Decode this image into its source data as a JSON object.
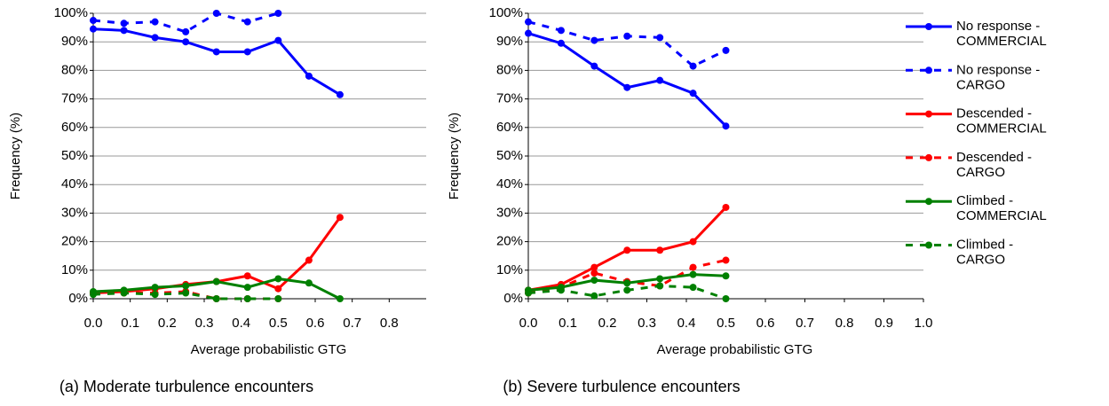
{
  "chart_data": [
    {
      "type": "line",
      "ylabel": "Frequency (%)",
      "xlabel": "Average probabilistic GTG",
      "caption": "(a) Moderate turbulence encounters",
      "x": [
        0,
        0.083,
        0.167,
        0.25,
        0.333,
        0.417,
        0.5,
        0.583,
        0.667
      ],
      "xlim": [
        0,
        0.9
      ],
      "xticks": [
        {
          "value": 0,
          "label": "0.0"
        },
        0.1,
        0.2,
        0.3,
        0.4,
        0.5,
        0.6,
        0.7,
        0.8
      ],
      "ylim": [
        0,
        100
      ],
      "yticks": [
        {
          "value": 0,
          "label": "0%"
        },
        {
          "value": 10,
          "label": "10%"
        },
        {
          "value": 20,
          "label": "20%"
        },
        {
          "value": 30,
          "label": "30%"
        },
        {
          "value": 40,
          "label": "40%"
        },
        {
          "value": 50,
          "label": "50%"
        },
        {
          "value": 60,
          "label": "60%"
        },
        {
          "value": 70,
          "label": "70%"
        },
        {
          "value": 80,
          "label": "80%"
        },
        {
          "value": 90,
          "label": "90%"
        },
        {
          "value": 100,
          "label": "100%"
        }
      ],
      "grid": true,
      "series": [
        {
          "name": "No response - COMMERCIAL",
          "color": "#0000ff",
          "dash": false,
          "values": [
            94.5,
            94,
            91.5,
            90,
            86.5,
            86.5,
            90.5,
            78,
            71.5
          ]
        },
        {
          "name": "No response - CARGO",
          "color": "#0000ff",
          "dash": true,
          "values": [
            97.5,
            96.5,
            97,
            93.5,
            100,
            97,
            100,
            null,
            null
          ]
        },
        {
          "name": "Descended - COMMERCIAL",
          "color": "#ff0000",
          "dash": false,
          "values": [
            2,
            2.5,
            3.5,
            5,
            6,
            8,
            3.5,
            13.5,
            28.5
          ]
        },
        {
          "name": "Descended - CARGO",
          "color": "#ff0000",
          "dash": true,
          "values": [
            2,
            2,
            2,
            2.5,
            0,
            0,
            0,
            null,
            null
          ]
        },
        {
          "name": "Climbed - COMMERCIAL",
          "color": "#008000",
          "dash": false,
          "values": [
            2.5,
            3,
            4,
            4.5,
            6,
            4,
            7,
            5.5,
            0
          ]
        },
        {
          "name": "Climbed - CARGO",
          "color": "#008000",
          "dash": true,
          "values": [
            1.5,
            2,
            1.5,
            2,
            0,
            0,
            0,
            null,
            null
          ]
        }
      ]
    },
    {
      "type": "line",
      "ylabel": "Frequency (%)",
      "xlabel": "Average probabilistic GTG",
      "caption": "(b) Severe turbulence encounters",
      "x": [
        0,
        0.083,
        0.167,
        0.25,
        0.333,
        0.417,
        0.5
      ],
      "xlim": [
        0,
        1
      ],
      "xticks": [
        {
          "value": 0,
          "label": "0.0"
        },
        0.1,
        0.2,
        0.3,
        0.4,
        0.5,
        0.6,
        0.7,
        0.8,
        0.9,
        {
          "value": 1,
          "label": "1.0"
        }
      ],
      "ylim": [
        0,
        100
      ],
      "yticks": [
        {
          "value": 0,
          "label": "0%"
        },
        {
          "value": 10,
          "label": "10%"
        },
        {
          "value": 20,
          "label": "20%"
        },
        {
          "value": 30,
          "label": "30%"
        },
        {
          "value": 40,
          "label": "40%"
        },
        {
          "value": 50,
          "label": "50%"
        },
        {
          "value": 60,
          "label": "60%"
        },
        {
          "value": 70,
          "label": "70%"
        },
        {
          "value": 80,
          "label": "80%"
        },
        {
          "value": 90,
          "label": "90%"
        },
        {
          "value": 100,
          "label": "100%"
        }
      ],
      "grid": true,
      "series": [
        {
          "color": "#0000ff",
          "dash": false,
          "values": [
            93,
            89.5,
            81.5,
            74,
            76.5,
            72,
            60.5
          ]
        },
        {
          "color": "#0000ff",
          "dash": true,
          "values": [
            97,
            94,
            90.5,
            92,
            91.5,
            81.5,
            87
          ]
        },
        {
          "color": "#ff0000",
          "dash": false,
          "values": [
            3,
            5,
            11,
            17,
            17,
            20,
            32
          ]
        },
        {
          "color": "#ff0000",
          "dash": true,
          "values": [
            2,
            4,
            9,
            6,
            4.5,
            11,
            13.5
          ]
        },
        {
          "color": "#008000",
          "dash": false,
          "values": [
            3,
            4,
            6.5,
            5.5,
            7,
            8.5,
            8
          ]
        },
        {
          "color": "#008000",
          "dash": true,
          "values": [
            2,
            3,
            1,
            3,
            4.5,
            4,
            0
          ]
        }
      ]
    }
  ]
}
